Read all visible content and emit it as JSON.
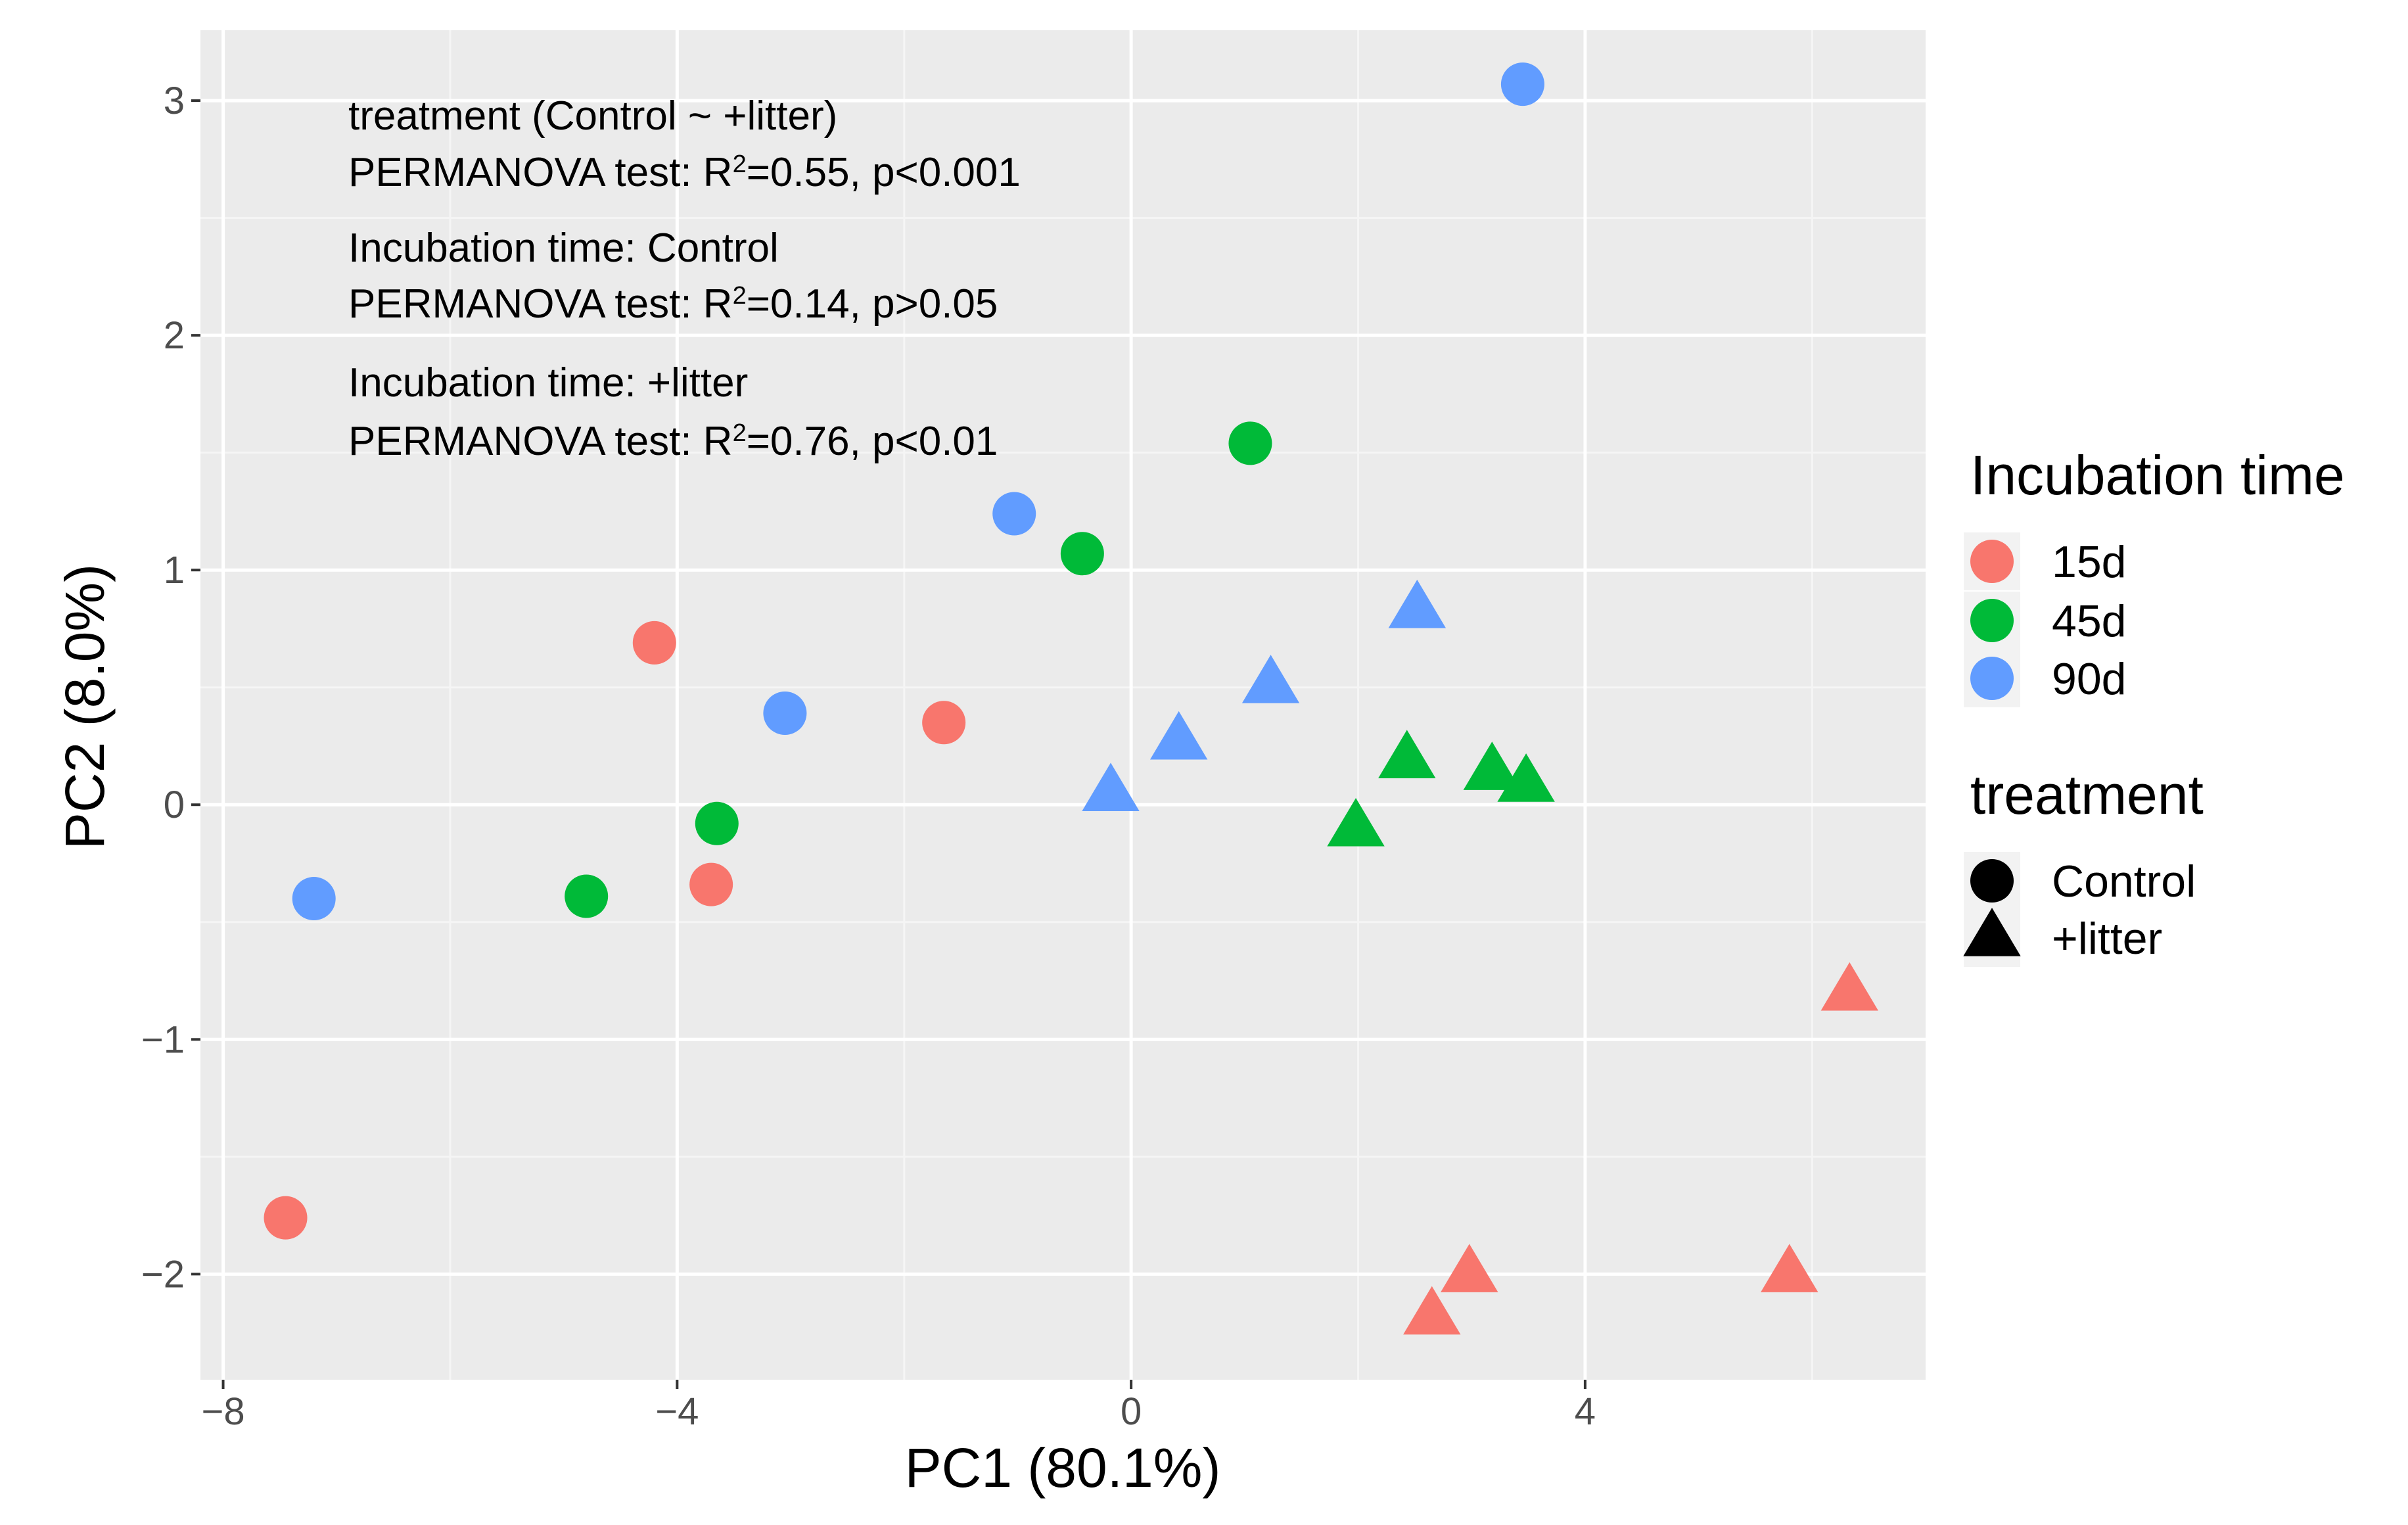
{
  "chart_data": {
    "type": "scatter",
    "title": "",
    "xlabel": "PC1 (80.1%)",
    "ylabel": "PC2 (8.0%)",
    "xlim": [
      -8.2,
      7.0
    ],
    "ylim": [
      -2.45,
      3.3
    ],
    "xticks": [
      -8,
      -4,
      0,
      4
    ],
    "xtick_labels": [
      "−8",
      "−4",
      "0",
      "4"
    ],
    "yticks": [
      -2,
      -1,
      0,
      1,
      2,
      3
    ],
    "ytick_labels": [
      "−2",
      "−1",
      "0",
      "1",
      "2",
      "3"
    ],
    "grid": true,
    "colors": {
      "15d": "#F8766D",
      "45d": "#00BA38",
      "90d": "#619CFF"
    },
    "legend": {
      "placement": "right",
      "color_title": "Incubation time",
      "color_items": [
        "15d",
        "45d",
        "90d"
      ],
      "shape_title": "treatment",
      "shape_items": [
        {
          "label": "Control",
          "shape": "circle"
        },
        {
          "label": "+litter",
          "shape": "triangle"
        }
      ]
    },
    "annotations": [
      {
        "lines": [
          {
            "text": "treatment (Control ~ +litter)"
          },
          {
            "pre": "PERMANOVA test: R",
            "sup": "2",
            "post": "=0.55, p<0.001"
          }
        ]
      },
      {
        "lines": [
          {
            "text": "Incubation time: Control"
          },
          {
            "pre": "PERMANOVA test: R",
            "sup": "2",
            "post": "=0.14, p>0.05"
          }
        ]
      },
      {
        "lines": [
          {
            "text": "Incubation time: +litter"
          },
          {
            "pre": "PERMANOVA test: R",
            "sup": "2",
            "post": "=0.76, p<0.01"
          }
        ]
      }
    ],
    "points": [
      {
        "x": -7.45,
        "y": -1.76,
        "time": "15d",
        "treatment": "Control"
      },
      {
        "x": -4.2,
        "y": 0.69,
        "time": "15d",
        "treatment": "Control"
      },
      {
        "x": -3.7,
        "y": -0.34,
        "time": "15d",
        "treatment": "Control"
      },
      {
        "x": -1.65,
        "y": 0.35,
        "time": "15d",
        "treatment": "Control"
      },
      {
        "x": -4.8,
        "y": -0.39,
        "time": "45d",
        "treatment": "Control"
      },
      {
        "x": -3.65,
        "y": -0.08,
        "time": "45d",
        "treatment": "Control"
      },
      {
        "x": -0.43,
        "y": 1.07,
        "time": "45d",
        "treatment": "Control"
      },
      {
        "x": 1.05,
        "y": 1.54,
        "time": "45d",
        "treatment": "Control"
      },
      {
        "x": -7.2,
        "y": -0.4,
        "time": "90d",
        "treatment": "Control"
      },
      {
        "x": -3.05,
        "y": 0.39,
        "time": "90d",
        "treatment": "Control"
      },
      {
        "x": -1.03,
        "y": 1.24,
        "time": "90d",
        "treatment": "Control"
      },
      {
        "x": 3.45,
        "y": 3.07,
        "time": "90d",
        "treatment": "Control"
      },
      {
        "x": 2.65,
        "y": -2.18,
        "time": "15d",
        "treatment": "+litter"
      },
      {
        "x": 2.98,
        "y": -2.0,
        "time": "15d",
        "treatment": "+litter"
      },
      {
        "x": 5.8,
        "y": -2.0,
        "time": "15d",
        "treatment": "+litter"
      },
      {
        "x": 6.33,
        "y": -0.8,
        "time": "15d",
        "treatment": "+litter"
      },
      {
        "x": 1.98,
        "y": -0.1,
        "time": "45d",
        "treatment": "+litter"
      },
      {
        "x": 2.43,
        "y": 0.19,
        "time": "45d",
        "treatment": "+litter"
      },
      {
        "x": 3.18,
        "y": 0.14,
        "time": "45d",
        "treatment": "+litter"
      },
      {
        "x": 3.48,
        "y": 0.09,
        "time": "45d",
        "treatment": "+litter"
      },
      {
        "x": -0.18,
        "y": 0.05,
        "time": "90d",
        "treatment": "+litter"
      },
      {
        "x": 0.42,
        "y": 0.27,
        "time": "90d",
        "treatment": "+litter"
      },
      {
        "x": 1.23,
        "y": 0.51,
        "time": "90d",
        "treatment": "+litter"
      },
      {
        "x": 2.52,
        "y": 0.83,
        "time": "90d",
        "treatment": "+litter"
      }
    ]
  }
}
